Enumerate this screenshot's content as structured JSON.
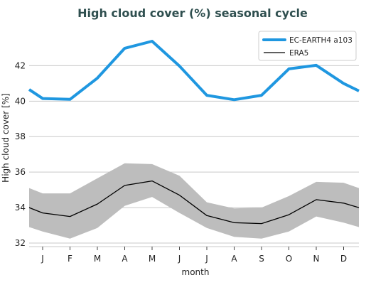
{
  "chart_data": {
    "type": "line",
    "title": "High cloud cover (%) seasonal cycle",
    "xlabel": "month",
    "ylabel": "High cloud cover [%]",
    "categories": [
      "J",
      "F",
      "M",
      "A",
      "M",
      "J",
      "J",
      "A",
      "S",
      "O",
      "N",
      "D"
    ],
    "ylim": [
      31.8,
      44.3
    ],
    "yticks": [
      32,
      34,
      36,
      38,
      40,
      42
    ],
    "grid": "horizontal",
    "legend_position": "top-right",
    "series": [
      {
        "name": "EC-EARTH4 a103",
        "color": "#1f97e0",
        "values": [
          40.15,
          40.1,
          41.3,
          42.98,
          43.38,
          41.98,
          40.33,
          40.08,
          40.33,
          41.82,
          42.02,
          41.0
        ],
        "wrap_edges": [
          40.66,
          40.58
        ]
      },
      {
        "name": "ERA5",
        "color": "#000000",
        "values": [
          33.7,
          33.5,
          34.2,
          35.25,
          35.5,
          34.7,
          33.55,
          33.15,
          33.1,
          33.6,
          34.45,
          34.25
        ],
        "wrap_edges": [
          34.0,
          34.0
        ],
        "band": {
          "color": "#bdbdbd",
          "upper": [
            34.8,
            34.8,
            35.65,
            36.5,
            36.45,
            35.8,
            34.3,
            33.95,
            34.0,
            34.65,
            35.45,
            35.4
          ],
          "lower": [
            32.65,
            32.25,
            32.85,
            34.1,
            34.6,
            33.7,
            32.85,
            32.35,
            32.25,
            32.65,
            33.5,
            33.15
          ],
          "upper_wrap_edges": [
            35.1,
            35.1
          ],
          "lower_wrap_edges": [
            32.9,
            32.9
          ]
        }
      }
    ]
  }
}
